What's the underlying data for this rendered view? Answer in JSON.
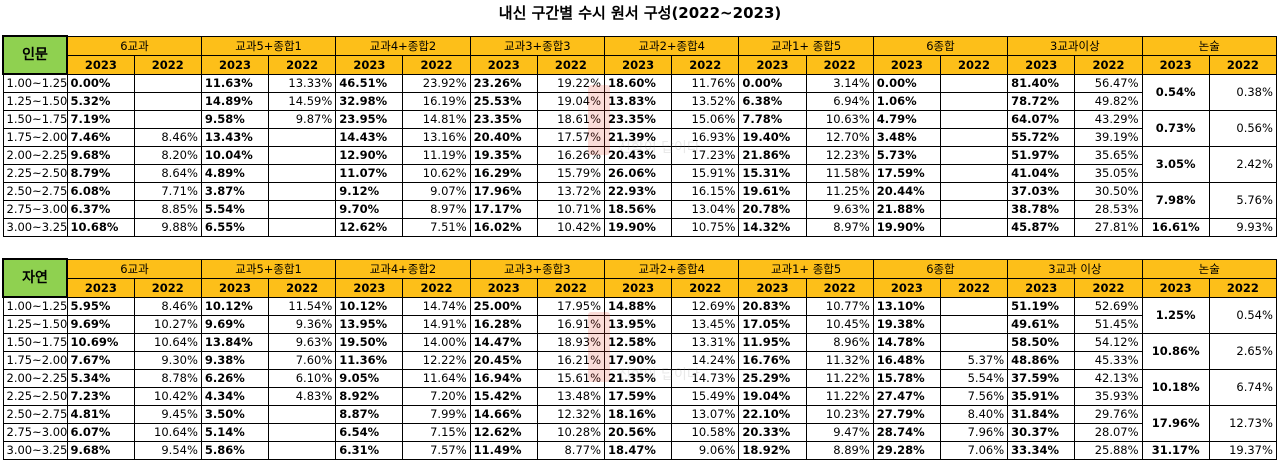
{
  "title": "내신 구간별 수시 원서 구성(2022~2023)",
  "years": [
    "2023",
    "2022"
  ],
  "groups": [
    "6교과",
    "교과5+종합1",
    "교과4+종합2",
    "교과3+종합3",
    "교과2+종합4",
    "교과1+ 종합5",
    "6종합",
    "3교과이상",
    "논술"
  ],
  "groups_natural": [
    "6교과",
    "교과5+종합1",
    "교과4+종합2",
    "교과3+종합3",
    "교과2+종합4",
    "교과1+ 종합5",
    "6종합",
    "3교과 이상",
    "논술"
  ],
  "ranges": [
    "1.00~1.25",
    "1.25~1.50",
    "1.50~1.75",
    "1.75~2.00",
    "2.00~2.25",
    "2.25~2.50",
    "2.50~2.75",
    "2.75~3.00",
    "3.00~3.25"
  ],
  "watermark_text": "진학이 답이다",
  "humanities": {
    "label": "인문",
    "rows": [
      [
        "0.00%",
        "",
        "11.63%",
        "13.33%",
        "46.51%",
        "23.92%",
        "23.26%",
        "19.22%",
        "18.60%",
        "11.76%",
        "0.00%",
        "3.14%",
        "0.00%",
        "",
        "81.40%",
        "56.47%"
      ],
      [
        "5.32%",
        "",
        "14.89%",
        "14.59%",
        "32.98%",
        "16.19%",
        "25.53%",
        "19.04%",
        "13.83%",
        "13.52%",
        "6.38%",
        "6.94%",
        "1.06%",
        "",
        "78.72%",
        "49.82%"
      ],
      [
        "7.19%",
        "",
        "9.58%",
        "9.87%",
        "23.95%",
        "14.81%",
        "23.35%",
        "18.61%",
        "23.35%",
        "15.06%",
        "7.78%",
        "10.63%",
        "4.79%",
        "",
        "64.07%",
        "43.29%"
      ],
      [
        "7.46%",
        "8.46%",
        "13.43%",
        "",
        "14.43%",
        "13.16%",
        "20.40%",
        "17.57%",
        "21.39%",
        "16.93%",
        "19.40%",
        "12.70%",
        "3.48%",
        "",
        "55.72%",
        "39.19%"
      ],
      [
        "9.68%",
        "8.20%",
        "10.04%",
        "",
        "12.90%",
        "11.19%",
        "19.35%",
        "16.26%",
        "20.43%",
        "17.23%",
        "21.86%",
        "12.23%",
        "5.73%",
        "",
        "51.97%",
        "35.65%"
      ],
      [
        "8.79%",
        "8.64%",
        "4.89%",
        "",
        "11.07%",
        "10.62%",
        "16.29%",
        "15.79%",
        "26.06%",
        "15.91%",
        "15.31%",
        "11.58%",
        "17.59%",
        "",
        "41.04%",
        "35.05%"
      ],
      [
        "6.08%",
        "7.71%",
        "3.87%",
        "",
        "9.12%",
        "9.07%",
        "17.96%",
        "13.72%",
        "22.93%",
        "16.15%",
        "19.61%",
        "11.25%",
        "20.44%",
        "",
        "37.03%",
        "30.50%"
      ],
      [
        "6.37%",
        "8.85%",
        "5.54%",
        "",
        "9.70%",
        "8.97%",
        "17.17%",
        "10.71%",
        "18.56%",
        "13.04%",
        "20.78%",
        "9.63%",
        "21.88%",
        "",
        "38.78%",
        "28.53%"
      ],
      [
        "10.68%",
        "9.88%",
        "6.55%",
        "",
        "12.62%",
        "7.51%",
        "16.02%",
        "10.42%",
        "19.90%",
        "10.75%",
        "14.32%",
        "8.97%",
        "19.90%",
        "",
        "45.87%",
        "27.81%"
      ]
    ],
    "nonsul": [
      {
        "span": 2,
        "v2023": "0.54%",
        "v2022": "0.38%"
      },
      {
        "span": 2,
        "v2023": "0.73%",
        "v2022": "0.56%"
      },
      {
        "span": 2,
        "v2023": "3.05%",
        "v2022": "2.42%"
      },
      {
        "span": 2,
        "v2023": "7.98%",
        "v2022": "5.76%"
      },
      {
        "span": 1,
        "v2023": "16.61%",
        "v2022": "9.93%"
      }
    ]
  },
  "natural": {
    "label": "자연",
    "rows": [
      [
        "5.95%",
        "8.46%",
        "10.12%",
        "11.54%",
        "10.12%",
        "14.74%",
        "25.00%",
        "17.95%",
        "14.88%",
        "12.69%",
        "20.83%",
        "10.77%",
        "13.10%",
        "",
        "51.19%",
        "52.69%"
      ],
      [
        "9.69%",
        "10.27%",
        "9.69%",
        "9.36%",
        "13.95%",
        "14.91%",
        "16.28%",
        "16.91%",
        "13.95%",
        "13.45%",
        "17.05%",
        "10.45%",
        "19.38%",
        "",
        "49.61%",
        "51.45%"
      ],
      [
        "10.69%",
        "10.64%",
        "13.84%",
        "9.63%",
        "19.50%",
        "14.00%",
        "14.47%",
        "18.93%",
        "12.58%",
        "13.31%",
        "11.95%",
        "8.96%",
        "14.78%",
        "",
        "58.50%",
        "54.12%"
      ],
      [
        "7.67%",
        "9.30%",
        "9.38%",
        "7.60%",
        "11.36%",
        "12.22%",
        "20.45%",
        "16.21%",
        "17.90%",
        "14.24%",
        "16.76%",
        "11.32%",
        "16.48%",
        "5.37%",
        "48.86%",
        "45.33%"
      ],
      [
        "5.34%",
        "8.78%",
        "6.26%",
        "6.10%",
        "9.05%",
        "11.64%",
        "16.94%",
        "15.61%",
        "21.35%",
        "14.73%",
        "25.29%",
        "11.22%",
        "15.78%",
        "5.54%",
        "37.59%",
        "42.13%"
      ],
      [
        "7.23%",
        "10.42%",
        "4.34%",
        "4.83%",
        "8.92%",
        "7.20%",
        "15.42%",
        "13.48%",
        "17.59%",
        "15.49%",
        "19.04%",
        "11.22%",
        "27.47%",
        "7.56%",
        "35.91%",
        "35.93%"
      ],
      [
        "4.81%",
        "9.45%",
        "3.50%",
        "",
        "8.87%",
        "7.99%",
        "14.66%",
        "12.32%",
        "18.16%",
        "13.07%",
        "22.10%",
        "10.23%",
        "27.79%",
        "8.40%",
        "31.84%",
        "29.76%"
      ],
      [
        "6.07%",
        "10.64%",
        "5.14%",
        "",
        "6.54%",
        "7.15%",
        "12.62%",
        "10.28%",
        "20.56%",
        "10.58%",
        "20.33%",
        "9.47%",
        "28.74%",
        "7.96%",
        "30.37%",
        "28.07%"
      ],
      [
        "9.68%",
        "9.54%",
        "5.86%",
        "",
        "6.31%",
        "7.57%",
        "11.49%",
        "8.77%",
        "18.47%",
        "9.06%",
        "18.92%",
        "8.89%",
        "29.28%",
        "7.06%",
        "33.34%",
        "25.88%"
      ]
    ],
    "nonsul": [
      {
        "span": 2,
        "v2023": "1.25%",
        "v2022": "0.54%"
      },
      {
        "span": 2,
        "v2023": "10.86%",
        "v2022": "2.65%"
      },
      {
        "span": 2,
        "v2023": "10.18%",
        "v2022": "6.74%"
      },
      {
        "span": 2,
        "v2023": "17.96%",
        "v2022": "12.73%"
      },
      {
        "span": 1,
        "v2023": "31.17%",
        "v2022": "19.37%"
      }
    ]
  }
}
